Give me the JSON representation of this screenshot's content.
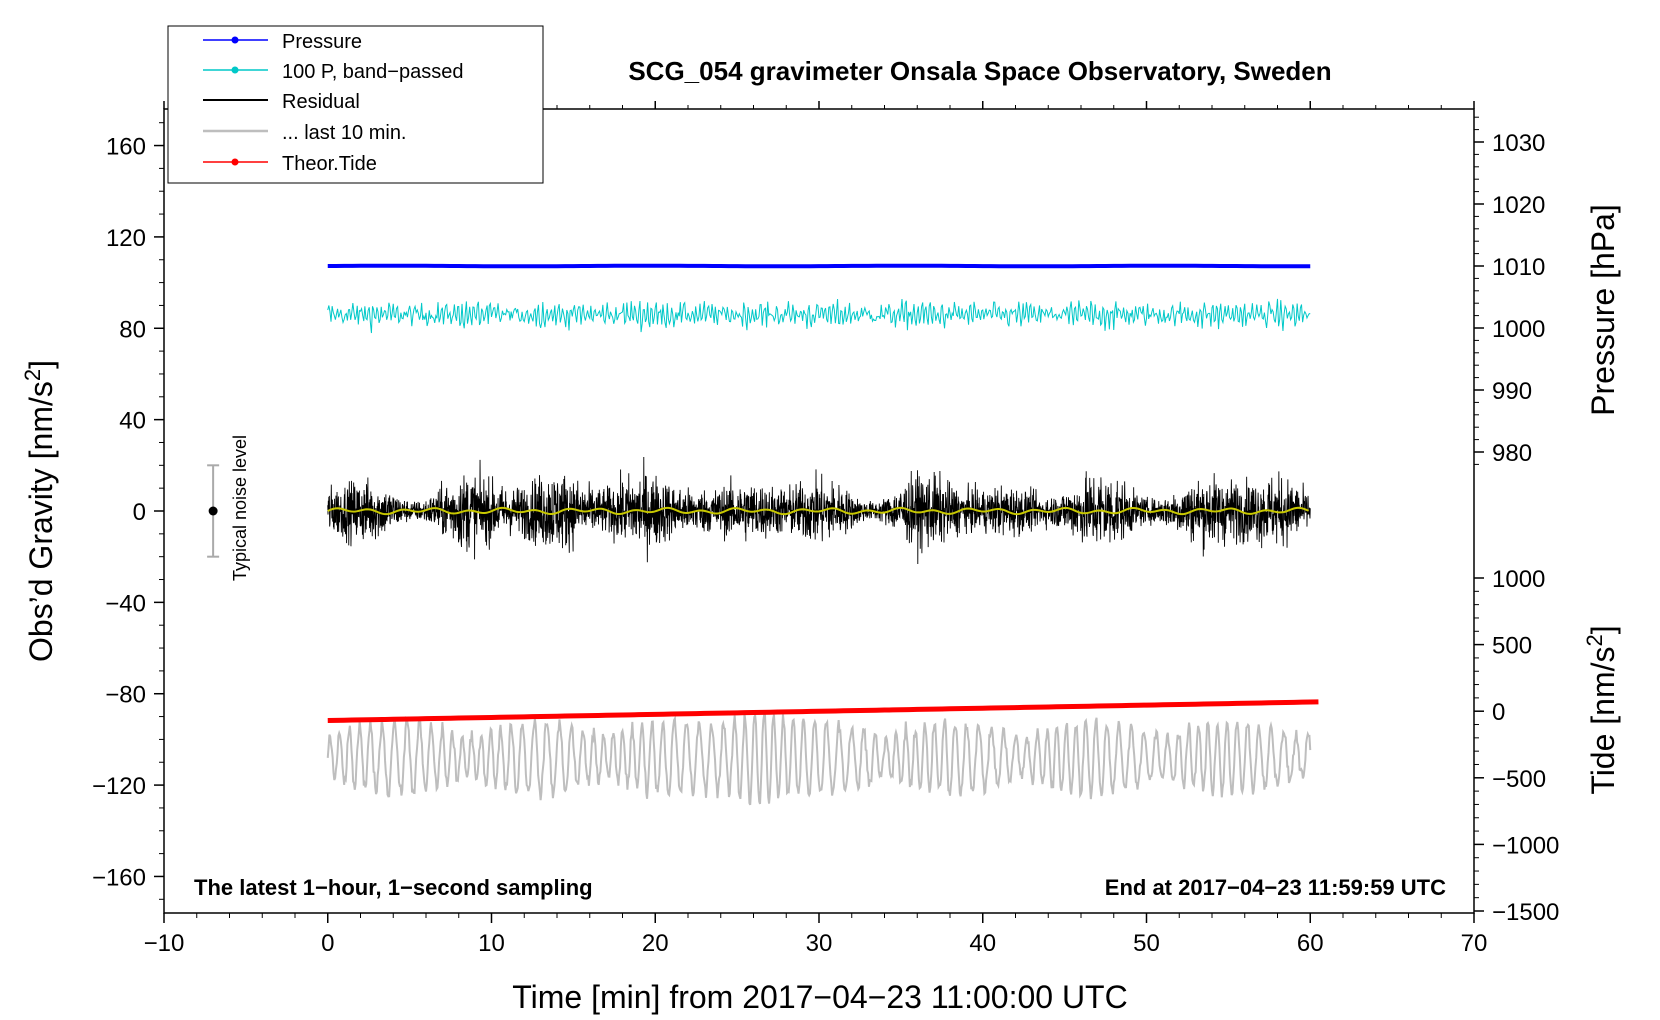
{
  "chart_data": {
    "type": "line",
    "title": "SCG_054 gravimeter Onsala Space Observatory, Sweden",
    "xlabel": "Time [min] from 2017−04−23 11:00:00 UTC",
    "xlim": [
      -10,
      70
    ],
    "xticks": [
      "−10",
      "0",
      "10",
      "20",
      "30",
      "40",
      "50",
      "60",
      "70"
    ],
    "left_axis": {
      "label": "Obs’d Gravity [nm/s",
      "label_sup": "2",
      "label_end": "]",
      "ylim": [
        -176,
        176
      ],
      "ticks": [
        160,
        120,
        80,
        40,
        0,
        -40,
        -80,
        -120,
        -160
      ],
      "tick_labels": [
        "160",
        "120",
        "80",
        "40",
        "0",
        "−40",
        "−80",
        "−120",
        "−160"
      ]
    },
    "right_pressure_axis": {
      "label": "Pressure [hPa]",
      "ticks": [
        1030,
        1020,
        1010,
        1000,
        990,
        980
      ],
      "tick_labels": [
        "1030",
        "1020",
        "1010",
        "1000",
        "990",
        "980"
      ]
    },
    "right_tide_axis": {
      "label": "Tide [nm/s",
      "label_sup": "2",
      "label_end": "]",
      "ticks": [
        1000,
        500,
        0,
        -500,
        -1000,
        -1500
      ],
      "tick_labels": [
        "1000",
        "500",
        "0",
        "−500",
        "−1000",
        "−1500"
      ]
    },
    "series": [
      {
        "name": "Pressure",
        "color": "#0000ff",
        "description_value": 1010,
        "axis": "pressure",
        "x_range": [
          0,
          60
        ]
      },
      {
        "name": "100 P, band−passed",
        "color": "#00c8c8",
        "center_gravity": 86,
        "amplitude": 8,
        "x_range": [
          0,
          60
        ]
      },
      {
        "name": "Residual",
        "color": "#000000",
        "center_gravity": 0,
        "amplitude": 30,
        "x_range": [
          0,
          60
        ]
      },
      {
        "name": "... last 10 min.",
        "color": "#bebebe",
        "center_gravity": -108,
        "amplitude": 18,
        "x_range": [
          0,
          60
        ]
      },
      {
        "name": "Theor.Tide",
        "color": "#ff0000",
        "tide_start": -70,
        "tide_end": 70,
        "axis": "tide",
        "x_range": [
          0,
          60.5
        ]
      }
    ],
    "smoothed_residual": {
      "color": "#c8c800",
      "value": 0
    },
    "noise_indicator": {
      "label": "Typical noise level",
      "x": -7,
      "center": 0,
      "low": -20,
      "high": 20
    },
    "annotations": {
      "left": "The latest 1−hour, 1−second sampling",
      "right": "End at 2017−04−23 11:59:59 UTC"
    }
  }
}
